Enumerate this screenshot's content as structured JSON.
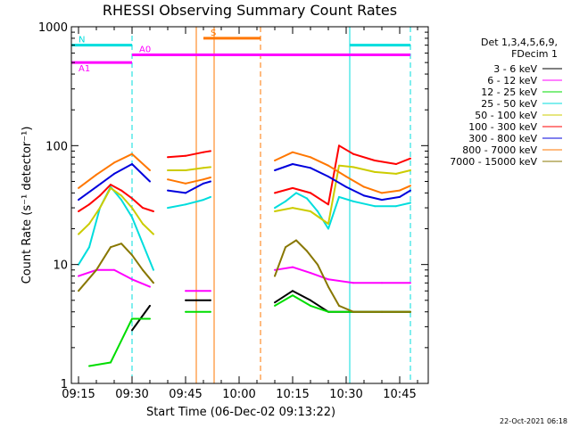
{
  "chart_data": {
    "type": "line",
    "title": "RHESSI Observing Summary Count Rates",
    "xlabel": "Start Time (06-Dec-02 09:13:22)",
    "ylabel": "Count Rate (s⁻¹ detector⁻¹)",
    "y_scale": "log",
    "xlim": [
      "09:13",
      "10:53"
    ],
    "ylim": [
      1,
      1000
    ],
    "x_ticks": [
      "09:15",
      "09:30",
      "09:45",
      "10:00",
      "10:15",
      "10:30",
      "10:45"
    ],
    "y_ticks": [
      "1",
      "10",
      "100",
      "1000"
    ],
    "legend_header": [
      "Det 1,3,4,5,6,9,",
      "FDecim 1"
    ],
    "legend_position": "right",
    "gaps": [
      [
        "09:36",
        "09:40"
      ],
      [
        "09:53",
        "10:10"
      ]
    ],
    "series": [
      {
        "name": "3 - 6 keV",
        "color": "#000000",
        "x": [
          "09:30",
          "09:35",
          "09:45",
          "09:52",
          "10:10",
          "10:15",
          "10:20",
          "10:25",
          "10:32",
          "10:40",
          "10:48"
        ],
        "values": [
          2.8,
          4.5,
          5.0,
          5.0,
          4.8,
          6.0,
          5.0,
          4.0,
          4.0,
          4.0,
          4.0
        ]
      },
      {
        "name": "6 - 12 keV",
        "color": "#ff00ff",
        "x": [
          "09:15",
          "09:20",
          "09:25",
          "09:30",
          "09:35",
          "09:45",
          "09:52",
          "10:10",
          "10:15",
          "10:20",
          "10:25",
          "10:32",
          "10:40",
          "10:48"
        ],
        "values": [
          8.0,
          9.0,
          9.0,
          7.5,
          6.5,
          6.0,
          6.0,
          9.0,
          9.5,
          8.5,
          7.5,
          7.0,
          7.0,
          7.0
        ]
      },
      {
        "name": "12 - 25 keV",
        "color": "#00dd00",
        "x": [
          "09:18",
          "09:24",
          "09:30",
          "09:35",
          "09:45",
          "09:52",
          "10:10",
          "10:15",
          "10:20",
          "10:25",
          "10:32",
          "10:40",
          "10:48"
        ],
        "values": [
          1.4,
          1.5,
          3.5,
          3.5,
          4.0,
          4.0,
          4.5,
          5.5,
          4.5,
          4.0,
          4.0,
          4.0,
          4.0
        ]
      },
      {
        "name": "25 - 50 keV",
        "color": "#00dddd",
        "x": [
          "09:15",
          "09:18",
          "09:21",
          "09:24",
          "09:27",
          "09:30",
          "09:33",
          "09:36",
          "09:40",
          "09:45",
          "09:50",
          "09:52",
          "10:10",
          "10:13",
          "10:16",
          "10:19",
          "10:22",
          "10:25",
          "10:28",
          "10:32",
          "10:38",
          "10:44",
          "10:48"
        ],
        "values": [
          10.0,
          14.0,
          30.0,
          45.0,
          35.0,
          25.0,
          15.0,
          9.0,
          30.0,
          32.0,
          35.0,
          37.0,
          30.0,
          34.0,
          40.0,
          36.0,
          28.0,
          20.0,
          37.0,
          34.0,
          31.0,
          31.0,
          33.0
        ]
      },
      {
        "name": "50 - 100 keV",
        "color": "#cccc00",
        "x": [
          "09:15",
          "09:18",
          "09:21",
          "09:24",
          "09:27",
          "09:30",
          "09:33",
          "09:36",
          "09:40",
          "09:45",
          "09:50",
          "09:52",
          "10:10",
          "10:15",
          "10:20",
          "10:25",
          "10:28",
          "10:32",
          "10:38",
          "10:44",
          "10:48"
        ],
        "values": [
          18.0,
          22.0,
          30.0,
          44.0,
          38.0,
          30.0,
          22.0,
          18.0,
          62.0,
          62.0,
          65.0,
          66.0,
          28.0,
          30.0,
          28.0,
          22.0,
          68.0,
          66.0,
          60.0,
          58.0,
          62.0
        ]
      },
      {
        "name": "100 - 300 keV",
        "color": "#ff0000",
        "x": [
          "09:15",
          "09:18",
          "09:21",
          "09:24",
          "09:27",
          "09:30",
          "09:33",
          "09:36",
          "09:40",
          "09:45",
          "09:50",
          "09:52",
          "10:10",
          "10:15",
          "10:20",
          "10:25",
          "10:28",
          "10:32",
          "10:38",
          "10:44",
          "10:48"
        ],
        "values": [
          28.0,
          32.0,
          38.0,
          47.0,
          42.0,
          36.0,
          30.0,
          28.0,
          80.0,
          82.0,
          88.0,
          90.0,
          40.0,
          44.0,
          40.0,
          32.0,
          100.0,
          85.0,
          75.0,
          70.0,
          78.0
        ]
      },
      {
        "name": "300 - 800 keV",
        "color": "#0000dd",
        "x": [
          "09:15",
          "09:20",
          "09:25",
          "09:30",
          "09:35",
          "09:40",
          "09:45",
          "09:50",
          "09:52",
          "10:10",
          "10:15",
          "10:20",
          "10:25",
          "10:30",
          "10:35",
          "10:40",
          "10:45",
          "10:48"
        ],
        "values": [
          35.0,
          45.0,
          58.0,
          70.0,
          50.0,
          42.0,
          40.0,
          48.0,
          50.0,
          62.0,
          70.0,
          65.0,
          55.0,
          45.0,
          38.0,
          35.0,
          37.0,
          42.0
        ]
      },
      {
        "name": "800 - 7000 keV",
        "color": "#ff7700",
        "x": [
          "09:15",
          "09:20",
          "09:25",
          "09:30",
          "09:35",
          "09:40",
          "09:45",
          "09:50",
          "09:52",
          "10:10",
          "10:15",
          "10:20",
          "10:25",
          "10:30",
          "10:35",
          "10:40",
          "10:45",
          "10:48"
        ],
        "values": [
          44.0,
          57.0,
          72.0,
          85.0,
          62.0,
          52.0,
          48.0,
          52.0,
          54.0,
          75.0,
          88.0,
          80.0,
          68.0,
          55.0,
          45.0,
          40.0,
          42.0,
          46.0
        ]
      },
      {
        "name": "7000 - 15000 keV",
        "color": "#887700",
        "x": [
          "09:15",
          "09:20",
          "09:24",
          "09:27",
          "09:30",
          "09:33",
          "09:36",
          "10:10",
          "10:13",
          "10:16",
          "10:19",
          "10:22",
          "10:25",
          "10:28",
          "10:32",
          "10:40",
          "10:48"
        ],
        "values": [
          6.0,
          9.0,
          14.0,
          15.0,
          12.0,
          9.0,
          7.0,
          8.0,
          14.0,
          16.0,
          13.0,
          10.0,
          6.5,
          4.5,
          4.0,
          4.0,
          4.0
        ]
      }
    ],
    "annotations": [
      {
        "label": "N",
        "color": "#00dddd",
        "y": 700,
        "segments": [
          [
            "09:13",
            "09:30"
          ],
          [
            "10:31",
            "10:48"
          ]
        ]
      },
      {
        "label": "A0",
        "color": "#ff00ff",
        "y": 580,
        "segments": [
          [
            "09:30",
            "10:48"
          ]
        ]
      },
      {
        "label": "A1",
        "color": "#ff00ff",
        "y": 500,
        "segments": [
          [
            "09:13",
            "09:30"
          ]
        ]
      },
      {
        "label": "S",
        "color": "#ff7700",
        "y": 800,
        "segments": [
          [
            "09:50",
            "10:06"
          ]
        ]
      }
    ],
    "vertical_markers": [
      {
        "time": "09:13",
        "color": "#00dddd",
        "style": "solid"
      },
      {
        "time": "09:30",
        "color": "#00dddd",
        "style": "dashed"
      },
      {
        "time": "09:48",
        "color": "#ff7700",
        "style": "solid"
      },
      {
        "time": "09:53",
        "color": "#ff7700",
        "style": "solid"
      },
      {
        "time": "10:06",
        "color": "#ff7700",
        "style": "dashed"
      },
      {
        "time": "10:31",
        "color": "#00dddd",
        "style": "solid"
      },
      {
        "time": "10:48",
        "color": "#00dddd",
        "style": "dashed"
      }
    ]
  },
  "timestamp": "22-Oct-2021 06:18"
}
